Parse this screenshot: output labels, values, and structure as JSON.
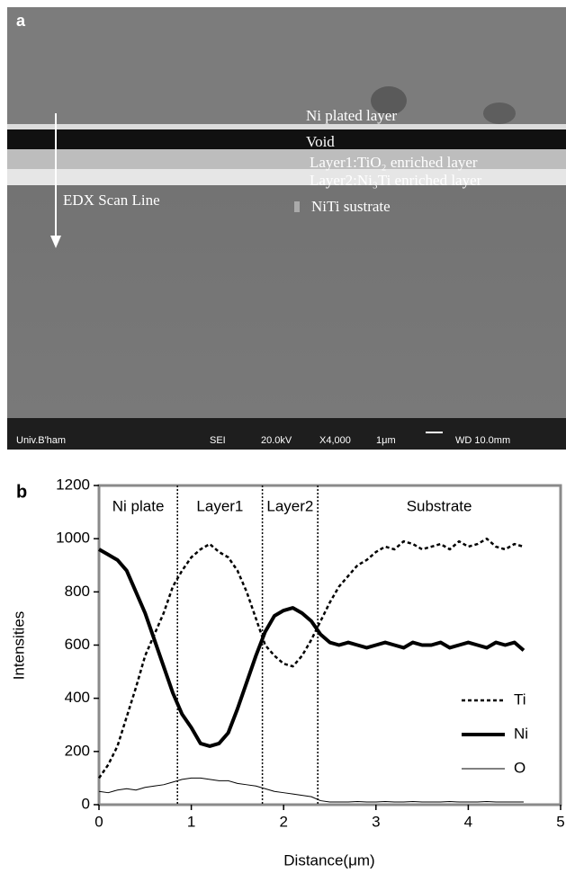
{
  "panel_a": {
    "label": "a",
    "layers": [
      "Ni plated layer",
      "Void",
      "Layer1:TiO₂ enriched layer",
      "Layer2:Ni₃Ti enriched layer",
      "NiTi sustrate"
    ],
    "scan_line": "EDX Scan Line",
    "footer": [
      "Univ.B'ham",
      "SEI",
      "20.0kV",
      "X4,000",
      "1μm",
      "WD 10.0mm"
    ]
  },
  "chart_data": {
    "type": "line",
    "label": "b",
    "xlabel": "Distance(μm)",
    "ylabel": "Intensities",
    "xlim": [
      0,
      5
    ],
    "xticks": [
      0,
      1,
      2,
      3,
      4,
      5
    ],
    "ylim": [
      0,
      1200
    ],
    "yticks": [
      0,
      200,
      400,
      600,
      800,
      1000,
      1200
    ],
    "regions": [
      "Ni plate",
      "Layer1",
      "Layer2",
      "Substrate"
    ],
    "region_boundaries": [
      0.85,
      1.77,
      2.37
    ],
    "legend": "lower right",
    "x": [
      0,
      0.1,
      0.2,
      0.3,
      0.4,
      0.5,
      0.6,
      0.7,
      0.8,
      0.9,
      1.0,
      1.1,
      1.2,
      1.3,
      1.4,
      1.5,
      1.6,
      1.7,
      1.8,
      1.9,
      2.0,
      2.1,
      2.2,
      2.3,
      2.4,
      2.5,
      2.6,
      2.7,
      2.8,
      2.9,
      3.0,
      3.1,
      3.2,
      3.3,
      3.4,
      3.5,
      3.6,
      3.7,
      3.8,
      3.9,
      4.0,
      4.1,
      4.2,
      4.3,
      4.4,
      4.5,
      4.6
    ],
    "series": [
      {
        "name": "Ti",
        "color": "#000000",
        "line_style": "dashed",
        "line_width": 2.5,
        "values": [
          100,
          150,
          220,
          330,
          440,
          560,
          640,
          720,
          820,
          880,
          930,
          960,
          980,
          950,
          930,
          880,
          800,
          700,
          600,
          560,
          530,
          520,
          560,
          620,
          690,
          760,
          820,
          860,
          900,
          920,
          950,
          970,
          960,
          990,
          980,
          960,
          970,
          980,
          960,
          990,
          970,
          980,
          1000,
          970,
          960,
          980,
          970
        ]
      },
      {
        "name": "Ni",
        "color": "#000000",
        "line_style": "solid",
        "line_width": 4,
        "values": [
          960,
          940,
          920,
          880,
          800,
          720,
          620,
          520,
          420,
          340,
          290,
          230,
          220,
          230,
          270,
          360,
          460,
          560,
          650,
          710,
          730,
          740,
          720,
          690,
          640,
          610,
          600,
          610,
          600,
          590,
          600,
          610,
          600,
          590,
          610,
          600,
          600,
          610,
          590,
          600,
          610,
          600,
          590,
          610,
          600,
          610,
          580
        ]
      },
      {
        "name": "O",
        "color": "#000000",
        "line_style": "solid",
        "line_width": 1,
        "values": [
          50,
          45,
          55,
          60,
          55,
          65,
          70,
          75,
          85,
          95,
          100,
          100,
          95,
          90,
          90,
          80,
          75,
          70,
          60,
          50,
          45,
          40,
          35,
          30,
          15,
          10,
          10,
          10,
          12,
          10,
          10,
          12,
          10,
          10,
          12,
          10,
          10,
          10,
          12,
          10,
          10,
          10,
          12,
          10,
          10,
          10,
          10
        ]
      }
    ]
  }
}
